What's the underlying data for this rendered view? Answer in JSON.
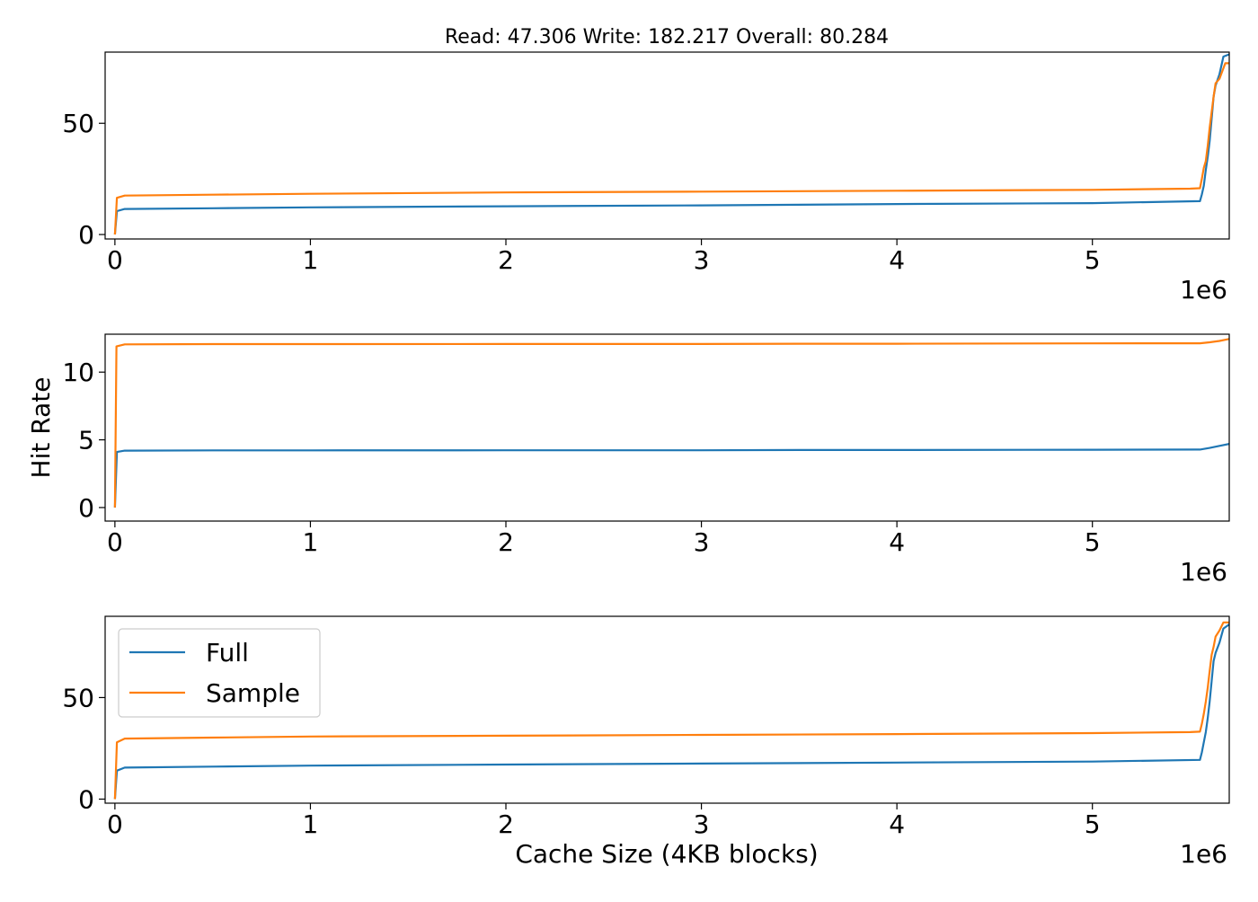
{
  "chart_data": {
    "type": "line",
    "title": "Read: 47.306 Write: 182.217 Overall: 80.284",
    "xlabel": "Cache Size (4KB blocks)",
    "ylabel": "Hit Rate",
    "x_offset_text": "1e6",
    "x_scale": 1000000,
    "xlim": [
      -50000,
      5700000
    ],
    "x_ticks": [
      0,
      1000000,
      2000000,
      3000000,
      4000000,
      5000000
    ],
    "x_tick_labels": [
      "0",
      "1",
      "2",
      "3",
      "4",
      "5"
    ],
    "grid": false,
    "legend": {
      "location": "upper-left",
      "subplot": 3,
      "entries": [
        "Full",
        "Sample"
      ]
    },
    "colors": {
      "Full": "#1f77b4",
      "Sample": "#ff7f0e"
    },
    "subplots": [
      {
        "ylim": [
          -2,
          82
        ],
        "y_ticks": [
          0,
          50
        ],
        "y_tick_labels": [
          "0",
          "50"
        ],
        "series": [
          {
            "name": "Full",
            "x": [
              0,
              10000,
              50000,
              500000,
              1000000,
              2000000,
              3000000,
              4000000,
              5000000,
              5550000,
              5560000,
              5570000,
              5580000,
              5590000,
              5600000,
              5610000,
              5620000,
              5630000,
              5650000,
              5670000,
              5700000
            ],
            "y": [
              0,
              10.5,
              11.5,
              11.8,
              12.2,
              12.7,
              13.1,
              13.7,
              14.1,
              15,
              18,
              22,
              29,
              35,
              42,
              52,
              62,
              67,
              72,
              80,
              81
            ]
          },
          {
            "name": "Sample",
            "x": [
              0,
              10000,
              50000,
              500000,
              1000000,
              2000000,
              3000000,
              4000000,
              5000000,
              5500000,
              5550000,
              5560000,
              5570000,
              5580000,
              5590000,
              5600000,
              5610000,
              5620000,
              5630000,
              5650000,
              5680000,
              5700000
            ],
            "y": [
              0,
              16.5,
              17.5,
              17.9,
              18.3,
              18.9,
              19.3,
              19.7,
              20.1,
              20.6,
              20.8,
              25,
              30,
              33,
              40,
              48,
              55,
              62,
              68,
              70,
              77,
              77
            ]
          }
        ]
      },
      {
        "ylim": [
          -1,
          12.8
        ],
        "y_ticks": [
          0,
          5,
          10
        ],
        "y_tick_labels": [
          "0",
          "5",
          "10"
        ],
        "series": [
          {
            "name": "Full",
            "x": [
              0,
              10000,
              50000,
              500000,
              1000000,
              2000000,
              3000000,
              3500000,
              4000000,
              5000000,
              5550000,
              5600000,
              5650000,
              5700000
            ],
            "y": [
              0,
              4.1,
              4.2,
              4.22,
              4.22,
              4.23,
              4.23,
              4.25,
              4.25,
              4.27,
              4.28,
              4.4,
              4.55,
              4.7
            ]
          },
          {
            "name": "Sample",
            "x": [
              0,
              8000,
              50000,
              500000,
              1000000,
              2000000,
              3000000,
              3500000,
              4000000,
              5000000,
              5550000,
              5600000,
              5650000,
              5700000
            ],
            "y": [
              0,
              11.9,
              12.05,
              12.07,
              12.07,
              12.08,
              12.08,
              12.1,
              12.1,
              12.12,
              12.13,
              12.2,
              12.3,
              12.45
            ]
          }
        ]
      },
      {
        "ylim": [
          -2,
          90
        ],
        "y_ticks": [
          0,
          50
        ],
        "y_tick_labels": [
          "0",
          "50"
        ],
        "series": [
          {
            "name": "Full",
            "x": [
              0,
              10000,
              50000,
              500000,
              1000000,
              2000000,
              3000000,
              4000000,
              5000000,
              5550000,
              5560000,
              5570000,
              5580000,
              5590000,
              5600000,
              5610000,
              5620000,
              5630000,
              5650000,
              5670000,
              5700000
            ],
            "y": [
              0,
              14,
              15.5,
              16,
              16.5,
              17,
              17.5,
              18,
              18.5,
              19.3,
              23,
              28,
              33,
              40,
              48,
              58,
              68,
              72,
              77,
              84,
              86
            ]
          },
          {
            "name": "Sample",
            "x": [
              0,
              10000,
              50000,
              500000,
              1000000,
              2000000,
              3000000,
              4000000,
              5000000,
              5500000,
              5550000,
              5560000,
              5570000,
              5580000,
              5590000,
              5600000,
              5610000,
              5620000,
              5630000,
              5650000,
              5670000,
              5700000
            ],
            "y": [
              0,
              28,
              29.8,
              30.3,
              30.8,
              31.2,
              31.6,
              32,
              32.5,
              33,
              33.2,
              37,
              42,
              48,
              55,
              63,
              71,
              75,
              80,
              83,
              87,
              87
            ]
          }
        ]
      }
    ]
  }
}
